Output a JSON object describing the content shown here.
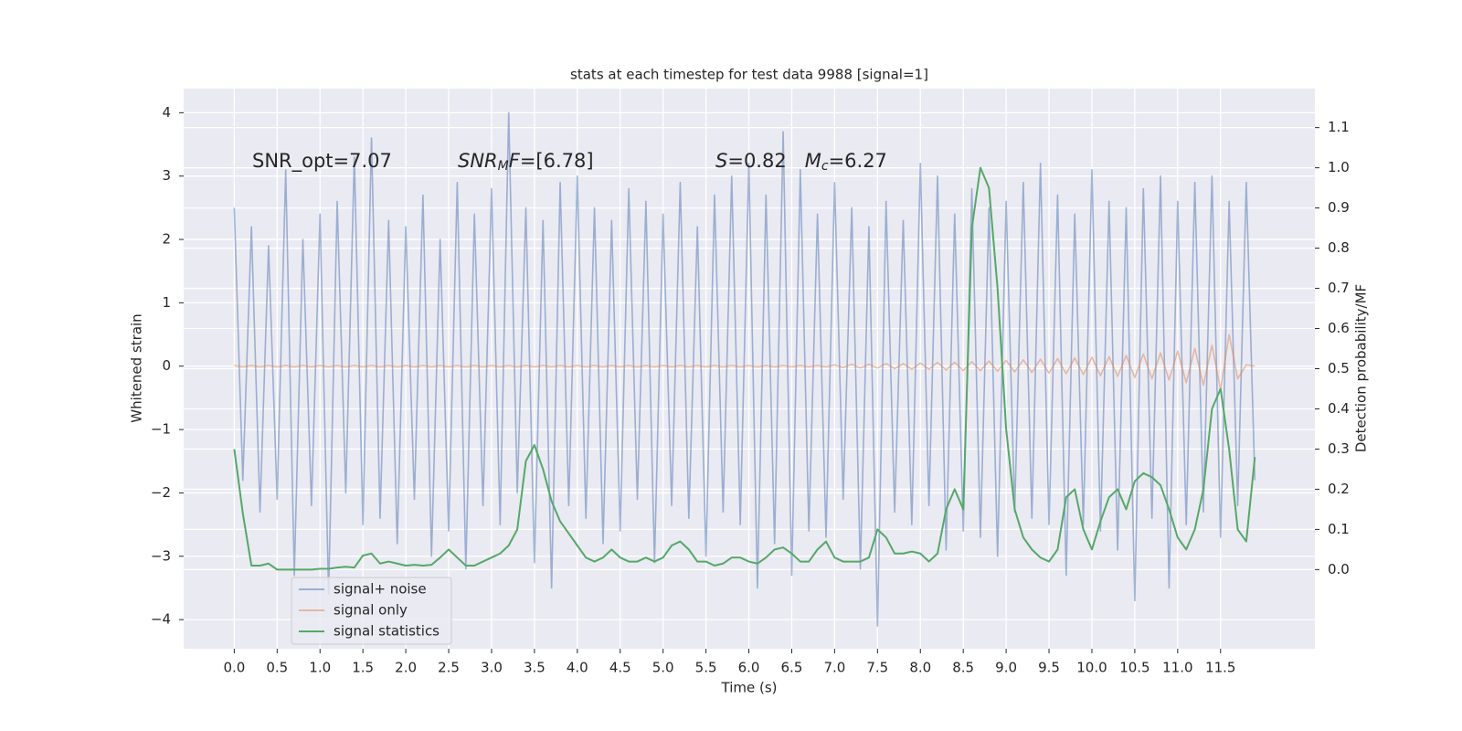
{
  "chart_data": {
    "type": "line",
    "title": "stats at each timestep for test data 9988 [signal=1]",
    "x_label": "Time (s)",
    "y_label": "Whitened strain",
    "y2_label": "Detection probability/MF",
    "grid": true,
    "legend": "lower left",
    "annotations": [
      {
        "segments": [
          {
            "text": "SNR_opt=7.07"
          }
        ]
      },
      {
        "segments": [
          {
            "text": "SNR",
            "italic": true
          },
          {
            "text": "M",
            "italic": true,
            "sub": true
          },
          {
            "text": "F",
            "italic": true
          },
          {
            "text": "=[6.78]"
          }
        ]
      },
      {
        "segments": [
          {
            "text": "S",
            "italic": true
          },
          {
            "text": "=0.82   "
          },
          {
            "text": "M",
            "italic": true
          },
          {
            "text": "c",
            "italic": true,
            "sub": true
          },
          {
            "text": "=6.27"
          }
        ]
      }
    ],
    "xlim": [
      -0.59,
      12.6
    ],
    "ylim": [
      -4.46,
      4.38
    ],
    "y2lim": [
      -0.197,
      1.197
    ],
    "xticks": [
      {
        "value": 0,
        "label": "0.0"
      },
      {
        "value": 0.5,
        "label": "0.5"
      },
      {
        "value": 1,
        "label": "1.0"
      },
      {
        "value": 1.5,
        "label": "1.5"
      },
      {
        "value": 2,
        "label": "2.0"
      },
      {
        "value": 2.5,
        "label": "2.5"
      },
      {
        "value": 3,
        "label": "3.0"
      },
      {
        "value": 3.5,
        "label": "3.5"
      },
      {
        "value": 4,
        "label": "4.0"
      },
      {
        "value": 4.5,
        "label": "4.5"
      },
      {
        "value": 5,
        "label": "5.0"
      },
      {
        "value": 5.5,
        "label": "5.5"
      },
      {
        "value": 6,
        "label": "6.0"
      },
      {
        "value": 6.5,
        "label": "6.5"
      },
      {
        "value": 7,
        "label": "7.0"
      },
      {
        "value": 7.5,
        "label": "7.5"
      },
      {
        "value": 8,
        "label": "8.0"
      },
      {
        "value": 8.5,
        "label": "8.5"
      },
      {
        "value": 9,
        "label": "9.0"
      },
      {
        "value": 9.5,
        "label": "9.5"
      },
      {
        "value": 10,
        "label": "10.0"
      },
      {
        "value": 10.5,
        "label": "10.5"
      },
      {
        "value": 11,
        "label": "11.0"
      },
      {
        "value": 11.5,
        "label": "11.5"
      }
    ],
    "yticks": [
      {
        "value": -4,
        "label": "−4"
      },
      {
        "value": -3,
        "label": "−3"
      },
      {
        "value": -2,
        "label": "−2"
      },
      {
        "value": -1,
        "label": "−1"
      },
      0,
      1,
      2,
      3,
      4
    ],
    "y2ticks": [
      {
        "value": 0,
        "label": "0.0"
      },
      {
        "value": 0.1,
        "label": "0.1"
      },
      {
        "value": 0.2,
        "label": "0.2"
      },
      {
        "value": 0.3,
        "label": "0.3"
      },
      {
        "value": 0.4,
        "label": "0.4"
      },
      {
        "value": 0.5,
        "label": "0.5"
      },
      {
        "value": 0.6,
        "label": "0.6"
      },
      {
        "value": 0.7,
        "label": "0.7"
      },
      {
        "value": 0.8,
        "label": "0.8"
      },
      {
        "value": 0.9,
        "label": "0.9"
      },
      {
        "value": 1,
        "label": "1.0"
      },
      {
        "value": 1.1,
        "label": "1.1"
      }
    ],
    "x": [
      0.0,
      0.1,
      0.2,
      0.3,
      0.4,
      0.5,
      0.6,
      0.7,
      0.8,
      0.9,
      1.0,
      1.1,
      1.2,
      1.3,
      1.4,
      1.5,
      1.6,
      1.7,
      1.8,
      1.9,
      2.0,
      2.1,
      2.2,
      2.3,
      2.4,
      2.5,
      2.6,
      2.7,
      2.8,
      2.9,
      3.0,
      3.1,
      3.2,
      3.3,
      3.4,
      3.5,
      3.6,
      3.7,
      3.8,
      3.9,
      4.0,
      4.1,
      4.2,
      4.3,
      4.4,
      4.5,
      4.6,
      4.7,
      4.8,
      4.9,
      5.0,
      5.1,
      5.2,
      5.3,
      5.4,
      5.5,
      5.6,
      5.7,
      5.8,
      5.9,
      6.0,
      6.1,
      6.2,
      6.3,
      6.4,
      6.5,
      6.6,
      6.7,
      6.8,
      6.9,
      7.0,
      7.1,
      7.2,
      7.3,
      7.4,
      7.5,
      7.6,
      7.7,
      7.8,
      7.9,
      8.0,
      8.1,
      8.2,
      8.3,
      8.4,
      8.5,
      8.6,
      8.7,
      8.8,
      8.9,
      9.0,
      9.1,
      9.2,
      9.3,
      9.4,
      9.5,
      9.6,
      9.7,
      9.8,
      9.9,
      10.0,
      10.1,
      10.2,
      10.3,
      10.4,
      10.5,
      10.6,
      10.7,
      10.8,
      10.9,
      11.0,
      11.1,
      11.2,
      11.3,
      11.4,
      11.5,
      11.6,
      11.7,
      11.8,
      11.9
    ],
    "series": [
      {
        "name": "signal+ noise",
        "color": "#4c72b0",
        "opacity": 0.5,
        "values": [
          2.5,
          -1.8,
          2.2,
          -2.3,
          1.9,
          -2.1,
          3.1,
          -3.3,
          2.0,
          -2.2,
          2.4,
          -3.6,
          2.6,
          -2.0,
          3.3,
          -2.5,
          3.6,
          -2.4,
          2.3,
          -2.8,
          2.2,
          -2.1,
          2.7,
          -3.0,
          2.0,
          -2.6,
          2.9,
          -3.2,
          2.4,
          -2.2,
          2.8,
          -2.5,
          4.0,
          -2.0,
          2.5,
          -3.1,
          2.3,
          -3.5,
          2.9,
          -2.2,
          3.0,
          -2.4,
          2.5,
          -2.8,
          2.3,
          -2.6,
          2.8,
          -2.1,
          2.6,
          -3.1,
          2.4,
          -2.2,
          2.9,
          -2.4,
          2.2,
          -3.0,
          2.7,
          -2.3,
          3.0,
          -2.5,
          3.2,
          -3.5,
          2.7,
          -2.8,
          3.7,
          -3.3,
          3.1,
          -2.6,
          2.4,
          -2.7,
          2.9,
          -2.1,
          2.5,
          -3.2,
          2.2,
          -4.1,
          2.6,
          -2.3,
          2.3,
          -2.5,
          3.2,
          -2.2,
          3.0,
          -2.9,
          2.4,
          -2.6,
          2.8,
          -2.7,
          2.5,
          -3.0,
          2.6,
          -2.3,
          2.9,
          -2.4,
          3.2,
          -2.5,
          2.7,
          -3.3,
          2.4,
          -2.5,
          3.1,
          -2.6,
          2.6,
          -2.9,
          2.5,
          -3.7,
          2.8,
          -2.4,
          3.0,
          -3.5,
          2.6,
          -2.5,
          2.9,
          -2.3,
          3.0,
          -2.7,
          2.6,
          -2.2,
          2.9,
          -1.8
        ]
      },
      {
        "name": "signal only",
        "color": "#dd8452",
        "opacity": 0.5,
        "values": [
          0.01,
          -0.01,
          0.01,
          -0.01,
          0.01,
          -0.01,
          0.01,
          -0.01,
          0.01,
          -0.01,
          0.01,
          -0.01,
          0.01,
          -0.01,
          0.01,
          -0.01,
          0.01,
          -0.01,
          0.01,
          -0.01,
          0.01,
          -0.01,
          0.01,
          -0.01,
          0.01,
          -0.01,
          0.01,
          -0.01,
          0.01,
          -0.01,
          0.01,
          -0.01,
          0.01,
          -0.01,
          0.01,
          -0.01,
          0.01,
          -0.01,
          0.01,
          -0.01,
          0.01,
          -0.01,
          0.01,
          -0.01,
          0.01,
          -0.01,
          0.01,
          -0.01,
          0.01,
          -0.01,
          0.01,
          -0.01,
          0.01,
          -0.01,
          0.01,
          -0.01,
          0.01,
          -0.01,
          0.01,
          -0.01,
          0.01,
          -0.01,
          0.01,
          -0.01,
          0.01,
          -0.01,
          0.01,
          -0.01,
          0.01,
          -0.01,
          0.02,
          -0.02,
          0.03,
          -0.03,
          0.03,
          -0.03,
          0.04,
          -0.04,
          0.04,
          -0.05,
          0.05,
          -0.05,
          0.06,
          -0.06,
          0.06,
          -0.07,
          0.07,
          -0.07,
          0.08,
          -0.08,
          0.09,
          -0.09,
          0.1,
          -0.1,
          0.11,
          -0.11,
          0.12,
          -0.12,
          0.13,
          -0.13,
          0.14,
          -0.15,
          0.15,
          -0.16,
          0.17,
          -0.18,
          0.19,
          -0.2,
          0.21,
          -0.22,
          0.24,
          -0.26,
          0.28,
          -0.3,
          0.33,
          -0.37,
          0.5,
          -0.2,
          0.02,
          0.0
        ]
      },
      {
        "name": "signal statistics",
        "color": "#55a868",
        "opacity": 1,
        "axis": "y2",
        "values": [
          0.3,
          0.14,
          0.01,
          0.01,
          0.015,
          0.0,
          0.0,
          0.0,
          0.0,
          0.0,
          0.002,
          0.002,
          0.005,
          0.007,
          0.005,
          0.035,
          0.04,
          0.015,
          0.02,
          0.015,
          0.01,
          0.012,
          0.01,
          0.012,
          0.03,
          0.05,
          0.03,
          0.01,
          0.01,
          0.02,
          0.03,
          0.04,
          0.06,
          0.1,
          0.27,
          0.31,
          0.25,
          0.17,
          0.12,
          0.09,
          0.06,
          0.03,
          0.02,
          0.03,
          0.05,
          0.03,
          0.02,
          0.02,
          0.03,
          0.02,
          0.03,
          0.06,
          0.07,
          0.05,
          0.02,
          0.02,
          0.01,
          0.015,
          0.03,
          0.03,
          0.02,
          0.015,
          0.03,
          0.05,
          0.055,
          0.04,
          0.02,
          0.02,
          0.05,
          0.07,
          0.03,
          0.02,
          0.02,
          0.02,
          0.03,
          0.1,
          0.08,
          0.04,
          0.04,
          0.045,
          0.04,
          0.02,
          0.04,
          0.15,
          0.2,
          0.15,
          0.85,
          1.0,
          0.95,
          0.7,
          0.35,
          0.15,
          0.08,
          0.05,
          0.03,
          0.02,
          0.05,
          0.18,
          0.2,
          0.1,
          0.05,
          0.12,
          0.18,
          0.2,
          0.15,
          0.22,
          0.24,
          0.23,
          0.21,
          0.15,
          0.08,
          0.05,
          0.1,
          0.2,
          0.4,
          0.45,
          0.3,
          0.1,
          0.07,
          0.28
        ]
      }
    ]
  }
}
